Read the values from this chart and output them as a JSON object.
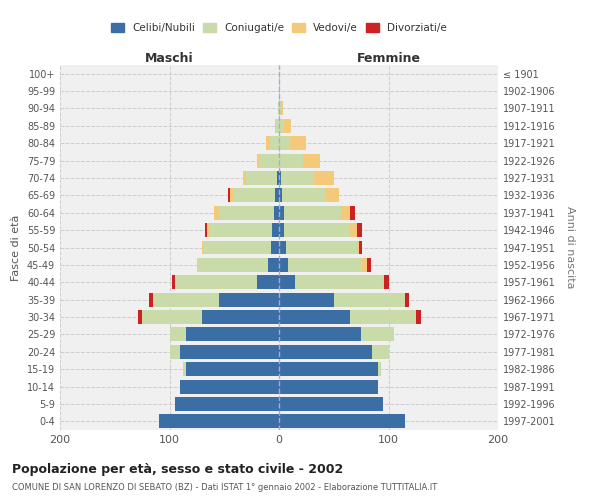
{
  "age_groups": [
    "0-4",
    "5-9",
    "10-14",
    "15-19",
    "20-24",
    "25-29",
    "30-34",
    "35-39",
    "40-44",
    "45-49",
    "50-54",
    "55-59",
    "60-64",
    "65-69",
    "70-74",
    "75-79",
    "80-84",
    "85-89",
    "90-94",
    "95-99",
    "100+"
  ],
  "birth_years": [
    "1997-2001",
    "1992-1996",
    "1987-1991",
    "1982-1986",
    "1977-1981",
    "1972-1976",
    "1967-1971",
    "1962-1966",
    "1957-1961",
    "1952-1956",
    "1947-1951",
    "1942-1946",
    "1937-1941",
    "1932-1936",
    "1927-1931",
    "1922-1926",
    "1917-1921",
    "1912-1916",
    "1907-1911",
    "1902-1906",
    "≤ 1901"
  ],
  "male": {
    "celibi": [
      110,
      95,
      90,
      85,
      90,
      85,
      70,
      55,
      20,
      10,
      7,
      6,
      5,
      4,
      2,
      0,
      0,
      0,
      0,
      0,
      0
    ],
    "coniugati": [
      0,
      0,
      0,
      3,
      10,
      15,
      55,
      60,
      75,
      65,
      62,
      58,
      50,
      38,
      28,
      18,
      8,
      3,
      1,
      0,
      0
    ],
    "vedovi": [
      0,
      0,
      0,
      0,
      0,
      0,
      0,
      0,
      0,
      0,
      1,
      2,
      4,
      3,
      3,
      2,
      4,
      1,
      0,
      0,
      0
    ],
    "divorziati": [
      0,
      0,
      0,
      0,
      0,
      0,
      4,
      4,
      3,
      0,
      0,
      2,
      0,
      2,
      0,
      0,
      0,
      0,
      0,
      0,
      0
    ]
  },
  "female": {
    "nubili": [
      115,
      95,
      90,
      90,
      85,
      75,
      65,
      50,
      15,
      8,
      6,
      5,
      5,
      3,
      2,
      0,
      0,
      0,
      0,
      0,
      0
    ],
    "coniugate": [
      0,
      0,
      0,
      3,
      15,
      30,
      60,
      65,
      80,
      68,
      65,
      60,
      52,
      40,
      30,
      22,
      10,
      5,
      2,
      1,
      0
    ],
    "vedove": [
      0,
      0,
      0,
      0,
      0,
      0,
      0,
      0,
      1,
      4,
      2,
      6,
      8,
      12,
      18,
      15,
      15,
      6,
      2,
      0,
      0
    ],
    "divorziate": [
      0,
      0,
      0,
      0,
      0,
      0,
      5,
      4,
      4,
      4,
      3,
      5,
      4,
      0,
      0,
      0,
      0,
      0,
      0,
      0,
      0
    ]
  },
  "color_celibi": "#3a6ea5",
  "color_coniugati": "#c8dba8",
  "color_vedovi": "#f5c97a",
  "color_divorziati": "#cc2222",
  "xlim": 200,
  "title": "Popolazione per età, sesso e stato civile - 2002",
  "subtitle": "COMUNE DI SAN LORENZO DI SEBATO (BZ) - Dati ISTAT 1° gennaio 2002 - Elaborazione TUTTITALIA.IT",
  "ylabel_left": "Fasce di età",
  "ylabel_right": "Anni di nascita",
  "xlabel_maschi": "Maschi",
  "xlabel_femmine": "Femmine",
  "legend_labels": [
    "Celibi/Nubili",
    "Coniugati/e",
    "Vedovi/e",
    "Divorziati/e"
  ],
  "background_color": "#ffffff",
  "bar_height": 0.8
}
